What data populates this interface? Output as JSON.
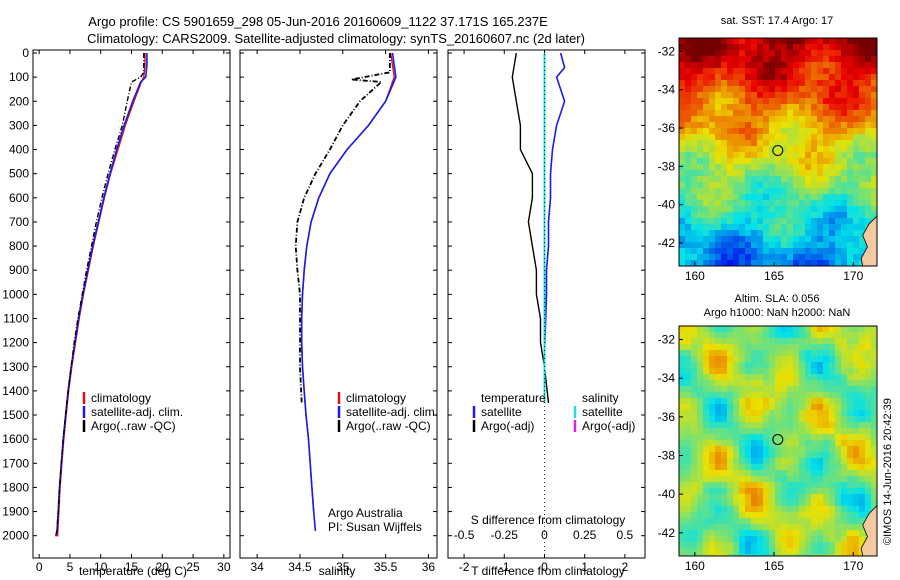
{
  "header": {
    "title_line1": "Argo profile: CS 5901659_298 05-Jun-2016 20160609_1122 37.171S 165.237E",
    "title_line2": "Climatology: CARS2009. Satellite-adjusted climatology: synTS_20160607.nc (2d later)"
  },
  "credits": {
    "org": "Argo Australia",
    "pi": "PI: Susan Wijffels",
    "stamp": "©IMOS 14-Jun-2016 20:42:39"
  },
  "colors": {
    "climatology": "#dd1111",
    "satellite": "#1a1aee",
    "argo": "#000000",
    "satellite_salinity": "#22dddd",
    "argo_salinity_adj": "#dd22dd"
  },
  "chart_data": [
    {
      "type": "line",
      "panel": "temperature",
      "xlabel": "temperature (deg C)",
      "xlim": [
        -1,
        31
      ],
      "xticks": [
        "0",
        "5",
        "10",
        "15",
        "20",
        "25",
        "30"
      ],
      "ylim": [
        0,
        2080
      ],
      "yaxis_reversed": true,
      "yticks": [
        "0",
        "100",
        "200",
        "300",
        "400",
        "500",
        "600",
        "700",
        "800",
        "900",
        "1000",
        "1100",
        "1200",
        "1300",
        "1400",
        "1500",
        "1600",
        "1700",
        "1800",
        "1900",
        "2000"
      ],
      "legend": [
        "climatology",
        "satellite-adj. clim.",
        "Argo(..raw -QC)"
      ],
      "series": [
        {
          "name": "climatology",
          "x": [
            17.2,
            17.2,
            17.0,
            16.6,
            15.4,
            14.0,
            12.8,
            11.6,
            10.6,
            9.7,
            8.8,
            8.0,
            7.2,
            6.5,
            5.9,
            5.3,
            4.8,
            4.4,
            4.0,
            3.7,
            3.4,
            3.2,
            3.0,
            2.8,
            2.7,
            2.6
          ],
          "y": [
            0,
            50,
            100,
            120,
            200,
            300,
            400,
            500,
            600,
            700,
            800,
            900,
            1000,
            1100,
            1200,
            1300,
            1400,
            1500,
            1600,
            1700,
            1800,
            1900,
            2000,
            2000,
            2000,
            2000
          ]
        },
        {
          "name": "satellite-adj. clim.",
          "x": [
            17.5,
            17.5,
            17.3,
            16.5,
            15.2,
            13.8,
            12.6,
            11.5,
            10.5,
            9.6,
            8.7,
            7.9,
            7.1,
            6.4,
            5.8,
            5.2,
            4.7,
            4.3,
            3.9,
            3.6,
            3.3,
            3.1,
            2.9,
            2.7
          ],
          "y": [
            0,
            50,
            100,
            120,
            200,
            300,
            400,
            500,
            600,
            700,
            800,
            900,
            1000,
            1100,
            1200,
            1300,
            1400,
            1500,
            1600,
            1700,
            1800,
            1900,
            1980,
            2000
          ]
        },
        {
          "name": "Argo(..raw -QC)",
          "x": [
            17.0,
            17.0,
            16.5,
            15.0,
            14.3,
            13.5,
            12.3,
            11.2,
            10.2,
            9.3,
            8.5,
            7.7,
            7.0,
            6.3,
            5.7,
            5.2,
            4.7,
            4.3,
            3.9,
            3.6,
            3.3,
            3.1,
            2.9,
            2.7
          ],
          "y": [
            0,
            80,
            100,
            120,
            200,
            300,
            400,
            500,
            600,
            700,
            800,
            900,
            1000,
            1100,
            1200,
            1300,
            1400,
            1500,
            1600,
            1700,
            1800,
            1900,
            1980,
            2000
          ]
        }
      ]
    },
    {
      "type": "line",
      "panel": "salinity",
      "xlabel": "salinity",
      "xlim": [
        33.8,
        36.1
      ],
      "xticks": [
        "34",
        "34.5",
        "35",
        "35.5",
        "36"
      ],
      "ylim": [
        0,
        2080
      ],
      "yaxis_reversed": true,
      "legend": [
        "climatology",
        "satellite-adj. clim.",
        "Argo(..raw -QC)"
      ],
      "series": [
        {
          "name": "climatology",
          "x": [
            35.56,
            35.58,
            35.6,
            35.5,
            35.3,
            35.05,
            34.85,
            34.72,
            34.63,
            34.58,
            34.55,
            34.53,
            34.52,
            34.52,
            34.53,
            34.55,
            34.57,
            34.6,
            34.62,
            34.64,
            34.66
          ],
          "y": [
            0,
            50,
            100,
            200,
            300,
            400,
            500,
            600,
            700,
            800,
            900,
            1000,
            1100,
            1200,
            1300,
            1400,
            1500,
            1600,
            1700,
            1800,
            1900
          ]
        },
        {
          "name": "satellite-adj. clim.",
          "x": [
            35.58,
            35.6,
            35.62,
            35.5,
            35.3,
            35.05,
            34.85,
            34.72,
            34.63,
            34.58,
            34.55,
            34.53,
            34.52,
            34.52,
            34.53,
            34.55,
            34.57,
            34.6,
            34.62,
            34.64,
            34.66,
            34.68
          ],
          "y": [
            0,
            50,
            100,
            200,
            300,
            400,
            500,
            600,
            700,
            800,
            900,
            1000,
            1100,
            1200,
            1300,
            1400,
            1500,
            1600,
            1700,
            1800,
            1900,
            1980
          ]
        },
        {
          "name": "Argo(..raw -QC)",
          "x": [
            35.55,
            35.55,
            35.1,
            35.45,
            35.2,
            35.0,
            34.85,
            34.68,
            34.55,
            34.47,
            34.45,
            34.47,
            34.5,
            34.5,
            34.5,
            34.52
          ],
          "y": [
            0,
            80,
            110,
            120,
            200,
            300,
            400,
            500,
            600,
            700,
            800,
            900,
            1000,
            1100,
            1300,
            1450
          ]
        }
      ]
    },
    {
      "type": "line",
      "panel": "difference",
      "xlabel_top": "S difference from climatology",
      "xlabel": "T difference from climatology",
      "xlim": [
        -2.4,
        2.5
      ],
      "xticks": [
        "-2",
        "-1",
        "0",
        "1",
        "2"
      ],
      "sticks": [
        "-0.5",
        "-0.25",
        "0",
        "0.25",
        "0.5"
      ],
      "ylim": [
        0,
        2080
      ],
      "yaxis_reversed": true,
      "legend_temperature_title": "temperature",
      "legend_salinity_title": "salinity",
      "legend": [
        "satellite",
        "Argo(-adj)",
        "satellite",
        "Argo(-adj)"
      ],
      "series": [
        {
          "name": "satellite",
          "x": [
            0.4,
            0.5,
            0.3,
            0.5,
            0.3,
            0.2,
            0.15,
            0.15,
            0.1,
            0.1,
            0.05,
            0.05,
            0.03,
            0.0,
            0.0
          ],
          "y": [
            0,
            60,
            100,
            200,
            300,
            400,
            500,
            600,
            700,
            800,
            900,
            1000,
            1100,
            1250,
            1400
          ]
        },
        {
          "name": "Argo(-adj)",
          "x": [
            -0.7,
            -0.8,
            -0.7,
            -0.6,
            -0.6,
            -0.3,
            -0.3,
            -0.4,
            -0.3,
            -0.2,
            -0.2,
            -0.1,
            -0.1,
            0.0,
            0.1
          ],
          "y": [
            0,
            100,
            200,
            300,
            400,
            500,
            600,
            700,
            800,
            900,
            1000,
            1100,
            1200,
            1300,
            1450
          ]
        },
        {
          "name": "satellite",
          "x": [
            0.0,
            0.0,
            0.0,
            0.0,
            0.0,
            0.0,
            0.0,
            0.0,
            0.0
          ],
          "y": [
            0,
            200,
            400,
            600,
            800,
            1000,
            1200,
            1400,
            1450
          ]
        }
      ]
    },
    {
      "type": "heatmap",
      "panel": "map-sst",
      "title": "sat. SST: 17.4 Argo: 17",
      "xticks": [
        "160",
        "165",
        "170"
      ],
      "yticks": [
        "-32",
        "-34",
        "-36",
        "-38",
        "-40",
        "-42"
      ],
      "marker": {
        "lon": 165.237,
        "lat": -37.171
      }
    },
    {
      "type": "heatmap",
      "panel": "map-sla",
      "title_line1": "Altim. SLA: 0.056",
      "title_line2": "Argo h1000: NaN h2000: NaN",
      "xticks": [
        "160",
        "165",
        "170"
      ],
      "yticks": [
        "-32",
        "-34",
        "-36",
        "-38",
        "-40",
        "-42"
      ],
      "marker": {
        "lon": 165.237,
        "lat": -37.171
      }
    }
  ]
}
